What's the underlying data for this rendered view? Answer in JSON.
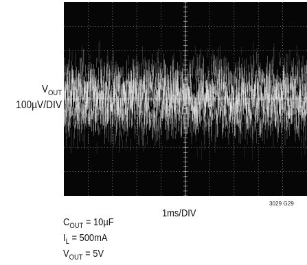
{
  "chart_data": {
    "type": "scope-trace",
    "y_axis": {
      "label_main": "V",
      "label_sub": "OUT",
      "scale": "100µV/DIV",
      "divisions": 8
    },
    "x_axis": {
      "scale": "1ms/DIV",
      "divisions": 10
    },
    "trace": {
      "signal": "noise band",
      "center_div": 0,
      "peak_to_peak_div": 4.5,
      "grid": true
    },
    "conditions": [
      {
        "main": "C",
        "sub": "OUT",
        "value": " = 10µF"
      },
      {
        "main": "I",
        "sub": "L",
        "value": " = 500mA"
      },
      {
        "main": "V",
        "sub": "OUT",
        "value": " = 5V"
      }
    ],
    "figure_id": "3029 G29"
  }
}
